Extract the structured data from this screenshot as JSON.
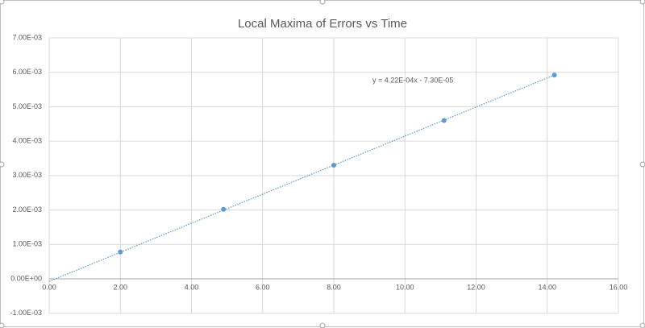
{
  "chart_data": {
    "type": "scatter",
    "title": "Local Maxima of Errors vs Time",
    "x": [
      2.0,
      4.9,
      8.0,
      11.1,
      14.2
    ],
    "values": [
      0.00078,
      0.00202,
      0.0033,
      0.0046,
      0.00592
    ],
    "color": "#5b9bd5",
    "xlim": [
      0,
      16
    ],
    "xticks": [
      {
        "value": 0,
        "label": "0.00"
      },
      {
        "value": 2,
        "label": "2.00"
      },
      {
        "value": 4,
        "label": "4.00"
      },
      {
        "value": 6,
        "label": "6.00"
      },
      {
        "value": 8,
        "label": "8.00"
      },
      {
        "value": 10,
        "label": "10.00"
      },
      {
        "value": 12,
        "label": "12.00"
      },
      {
        "value": 14,
        "label": "14.00"
      },
      {
        "value": 16,
        "label": "16.00"
      }
    ],
    "ylim": [
      -0.001,
      0.007
    ],
    "yticks": [
      {
        "value": -0.001,
        "label": "-1.00E-03"
      },
      {
        "value": 0,
        "label": "0.00E+00"
      },
      {
        "value": 0.001,
        "label": "1.00E-03"
      },
      {
        "value": 0.002,
        "label": "2.00E-03"
      },
      {
        "value": 0.003,
        "label": "3.00E-03"
      },
      {
        "value": 0.004,
        "label": "4.00E-03"
      },
      {
        "value": 0.005,
        "label": "5.00E-03"
      },
      {
        "value": 0.006,
        "label": "6.00E-03"
      },
      {
        "value": 0.007,
        "label": "7.00E-03"
      }
    ],
    "grid": true,
    "trendline": {
      "label": "y = 4.22E-04x - 7.30E-05",
      "slope": 0.000422,
      "intercept": -7.3e-05
    }
  }
}
